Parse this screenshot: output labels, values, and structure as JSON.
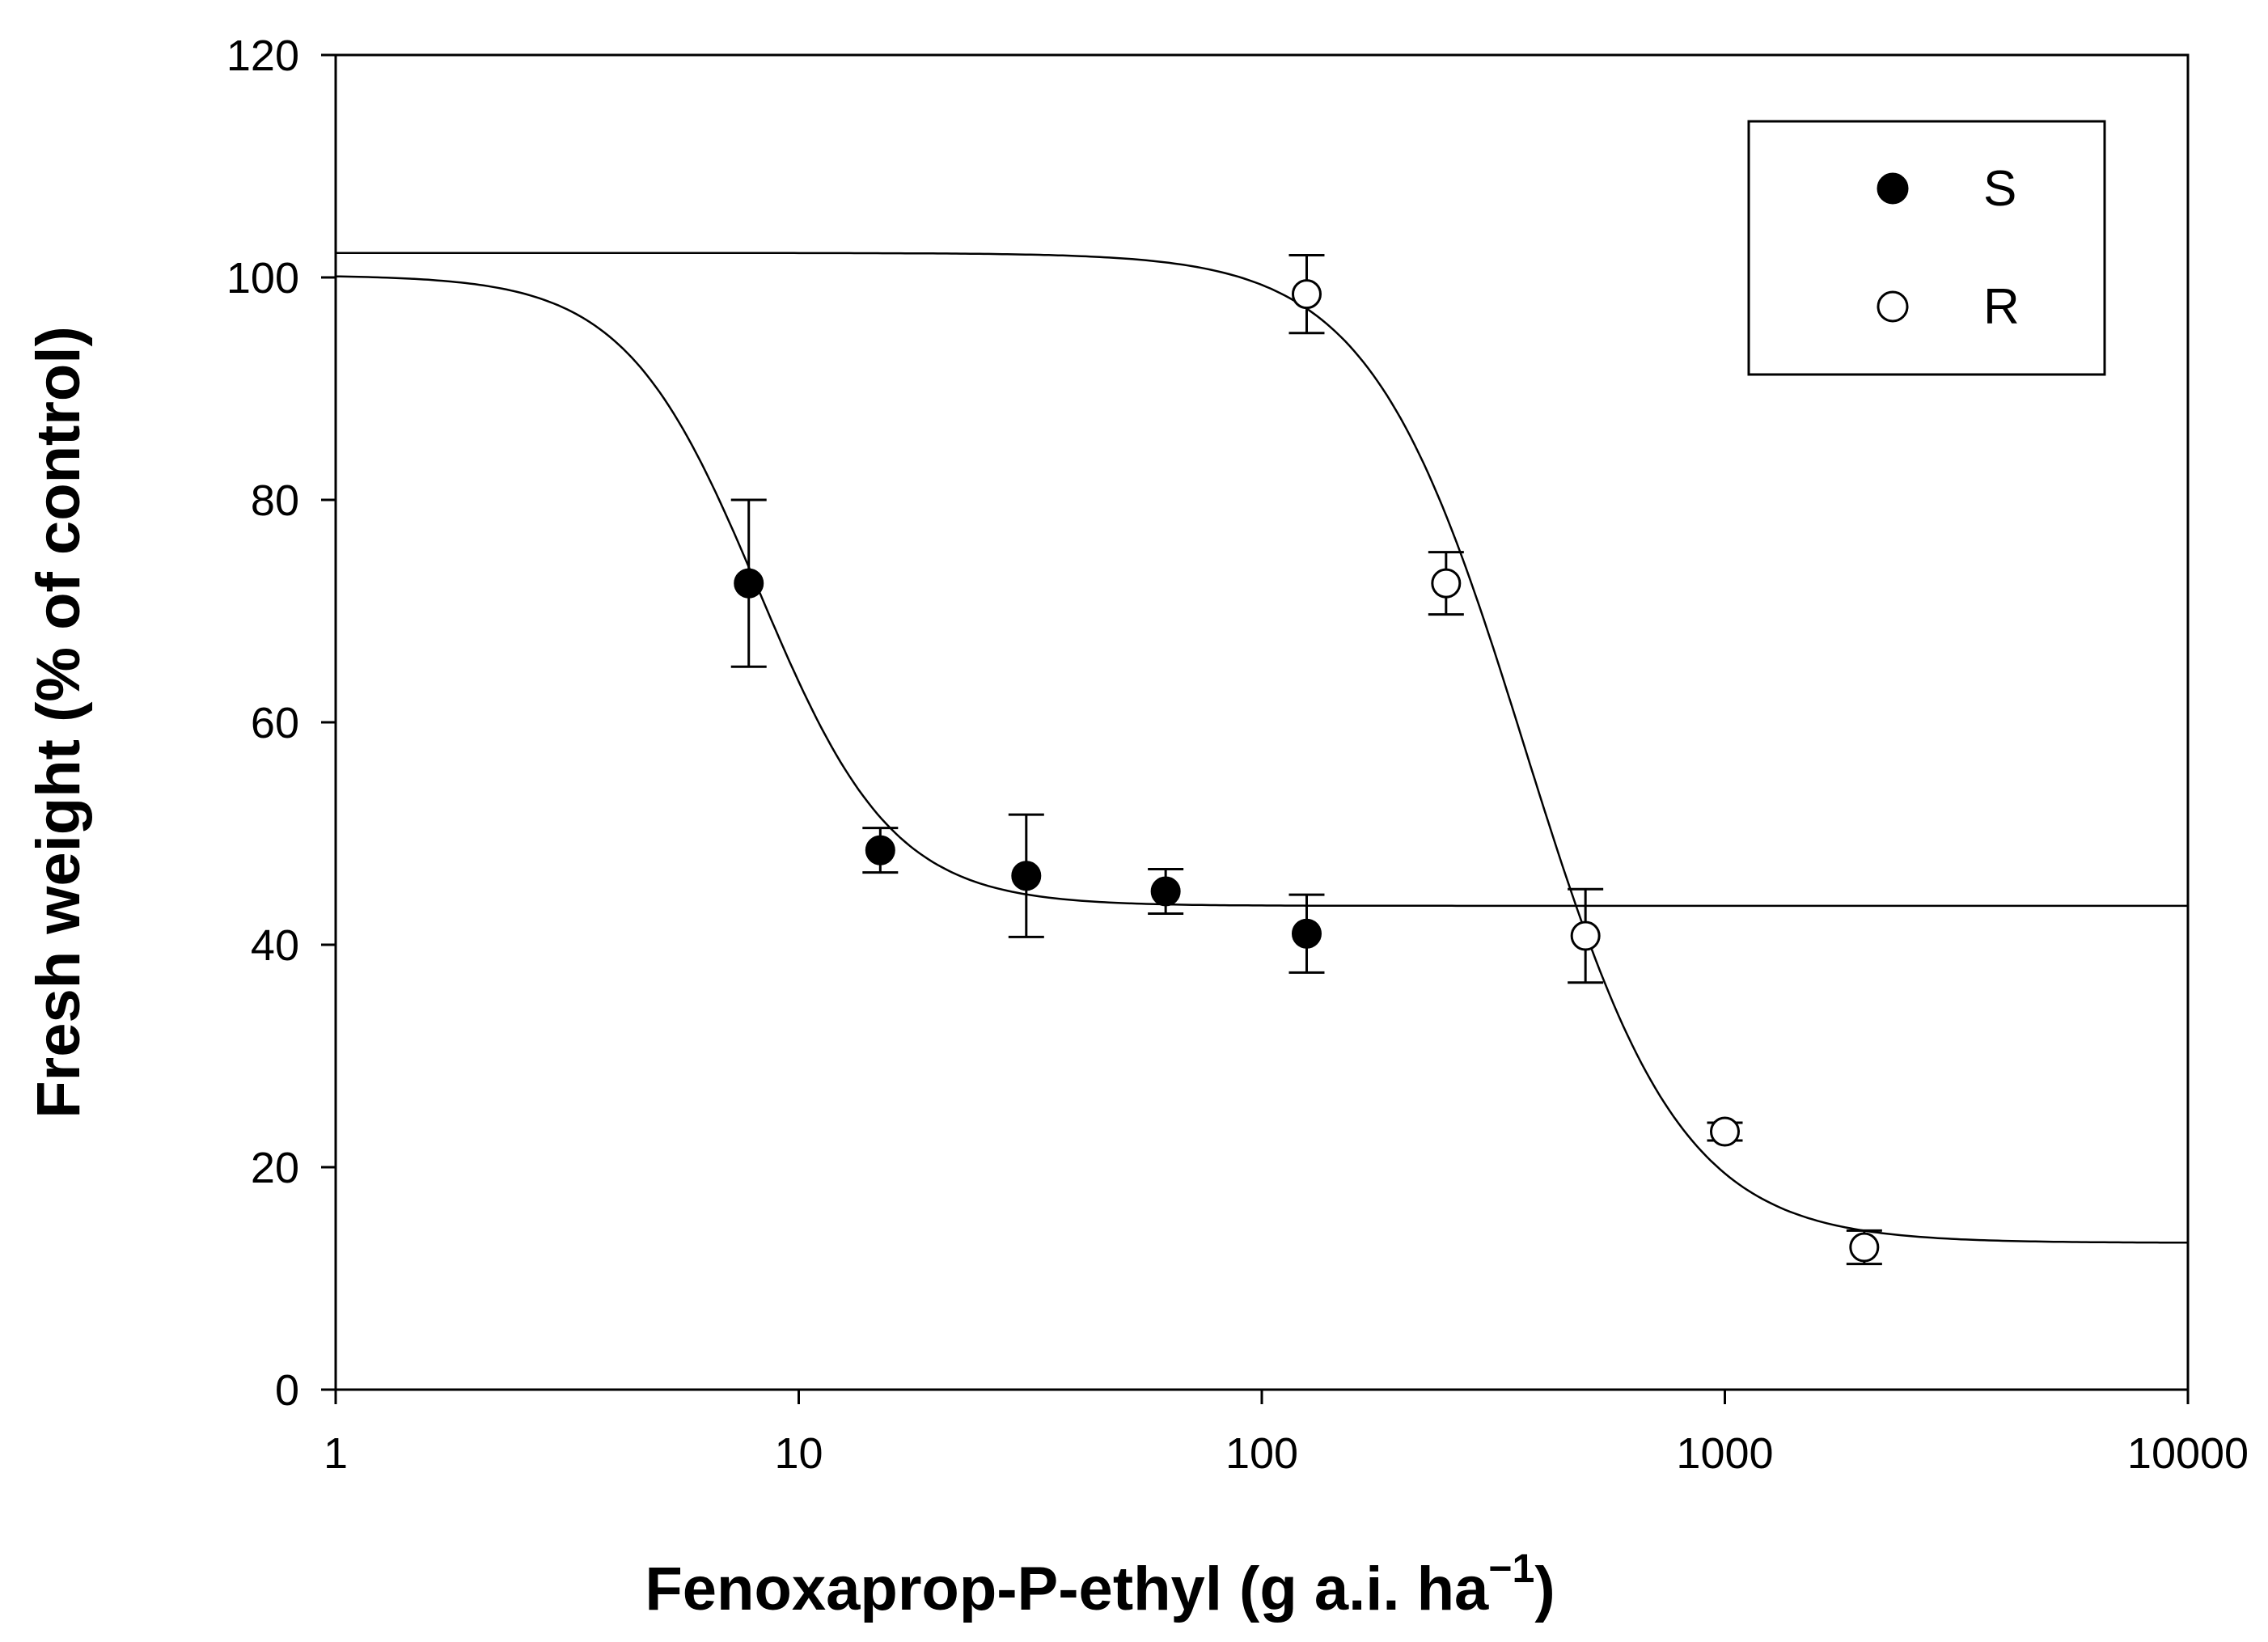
{
  "chart_data": {
    "type": "scatter",
    "title": "",
    "xlabel": "Fenoxaprop-P-ethyl (g a.i. ha",
    "xlabel_superscript": "−1",
    "xlabel_suffix": ")",
    "ylabel": "Fresh weight (% of control)",
    "x_scale": "log",
    "xlim": [
      1,
      10000
    ],
    "ylim": [
      0,
      120
    ],
    "x_ticks": [
      "1",
      "10",
      "100",
      "1000",
      "10000"
    ],
    "y_ticks": [
      "0",
      "20",
      "40",
      "60",
      "80",
      "100",
      "120"
    ],
    "grid": false,
    "legend_position": "top-right",
    "series": [
      {
        "name": "S",
        "marker": "filled-circle",
        "color": "#000000",
        "x": [
          7.8,
          15.0,
          31.0,
          62.0,
          125.0
        ],
        "y": [
          72.5,
          48.5,
          46.2,
          44.8,
          41.0
        ],
        "error": [
          7.5,
          2.0,
          5.5,
          2.0,
          3.5
        ],
        "fit": {
          "model": "log-logistic",
          "upper": 100.2,
          "lower": 43.5,
          "ed50": 8.2,
          "slope": 3.0
        }
      },
      {
        "name": "R",
        "marker": "open-circle",
        "color": "#000000",
        "x": [
          125.0,
          250.0,
          500.0,
          1000.0,
          2000.0
        ],
        "y": [
          98.5,
          72.5,
          40.8,
          23.2,
          12.8
        ],
        "error": [
          3.5,
          2.8,
          4.2,
          0.8,
          1.5
        ],
        "fit": {
          "model": "log-logistic",
          "upper": 102.2,
          "lower": 13.2,
          "ed50": 370.0,
          "slope": 2.6
        }
      }
    ]
  }
}
